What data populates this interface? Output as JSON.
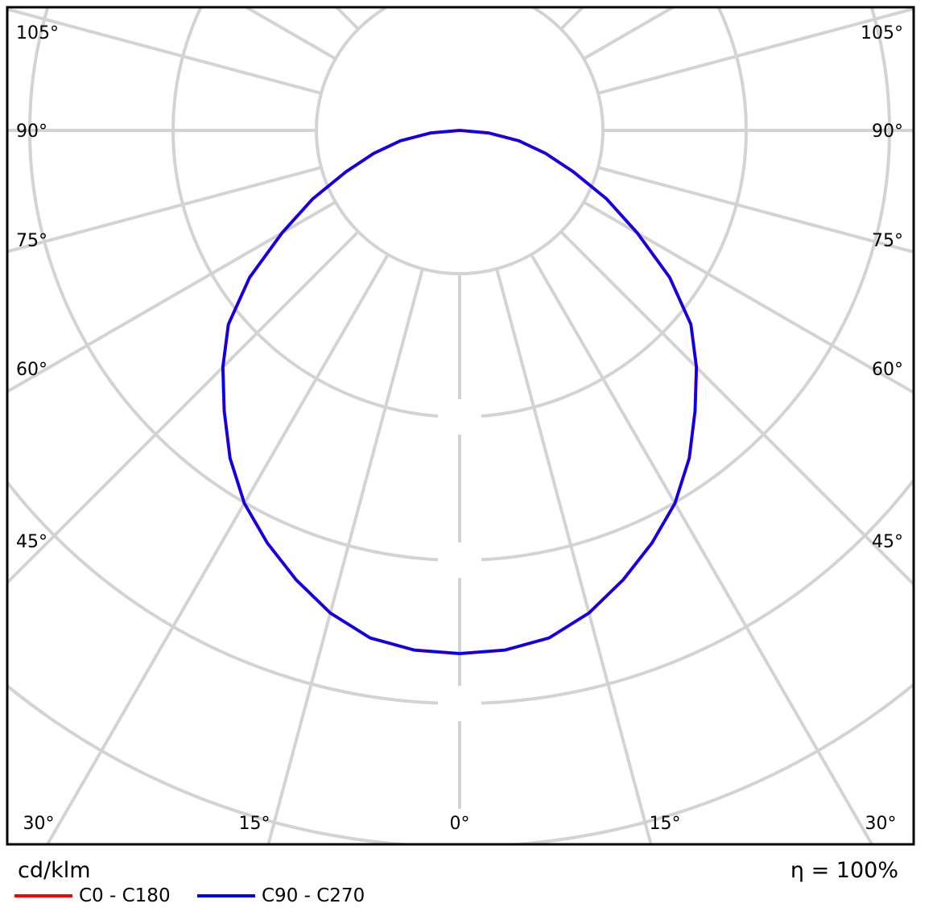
{
  "chart_data": {
    "type": "polar",
    "unit_label": "cd/klm",
    "efficiency_label": "η = 100%",
    "angle_labels_left": [
      "105°",
      "90°",
      "75°",
      "60°",
      "45°"
    ],
    "angle_labels_right": [
      "105°",
      "90°",
      "75°",
      "60°",
      "45°"
    ],
    "angle_labels_bottom": [
      "30°",
      "15°",
      "0°",
      "15°",
      "30°"
    ],
    "grid": true,
    "angle_step_deg": 15,
    "legend_position": "bottom-left",
    "intensity_scale": "relative (ring values not legible)",
    "angles_deg": [
      0,
      5,
      10,
      15,
      20,
      25,
      30,
      35,
      40,
      45,
      50,
      55,
      60,
      65,
      70,
      75,
      80,
      85,
      90
    ],
    "series": [
      {
        "name": "C0 - C180",
        "color": "#ff0000",
        "values": [
          1,
          0.997,
          0.985,
          0.955,
          0.914,
          0.87,
          0.823,
          0.765,
          0.7,
          0.64,
          0.577,
          0.49,
          0.392,
          0.31,
          0.231,
          0.17,
          0.115,
          0.055,
          0
        ]
      },
      {
        "name": "C90 - C270",
        "color": "#0000ff",
        "values": [
          1,
          0.997,
          0.985,
          0.955,
          0.914,
          0.87,
          0.823,
          0.765,
          0.7,
          0.64,
          0.577,
          0.49,
          0.392,
          0.31,
          0.231,
          0.17,
          0.115,
          0.055,
          0
        ]
      }
    ]
  }
}
